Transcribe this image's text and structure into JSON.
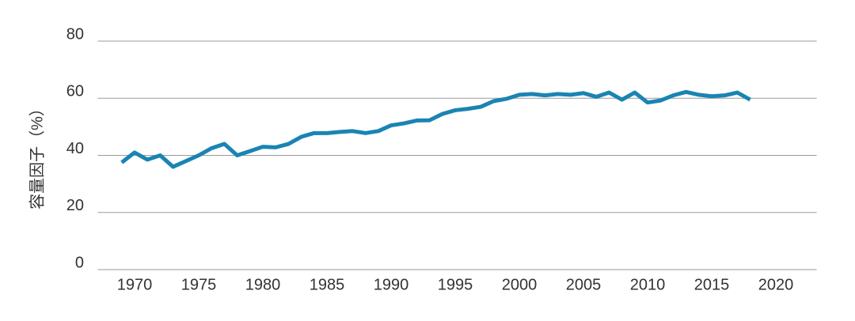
{
  "chart_data": {
    "type": "line",
    "y_label": "容量因子（%）",
    "x": [
      1969,
      1970,
      1971,
      1972,
      1973,
      1974,
      1975,
      1976,
      1977,
      1978,
      1979,
      1980,
      1981,
      1982,
      1983,
      1984,
      1985,
      1986,
      1987,
      1988,
      1989,
      1990,
      1991,
      1992,
      1993,
      1994,
      1995,
      1996,
      1997,
      1998,
      1999,
      2000,
      2001,
      2002,
      2003,
      2004,
      2005,
      2006,
      2007,
      2008,
      2009,
      2010,
      2011,
      2012,
      2013,
      2014,
      2015,
      2016,
      2017,
      2018
    ],
    "series": [
      {
        "name": "capacity factor",
        "color": "#1a84b3",
        "values": [
          37.5,
          41,
          38.5,
          40,
          36,
          38,
          40,
          42.5,
          44,
          40,
          41.5,
          43,
          42.8,
          44,
          46.5,
          47.8,
          47.8,
          48.2,
          48.5,
          47.8,
          48.5,
          50.5,
          51.2,
          52.2,
          52.3,
          54.5,
          55.8,
          56.3,
          57,
          59,
          59.8,
          61.2,
          61.5,
          61,
          61.5,
          61.2,
          61.8,
          60.5,
          62,
          59.5,
          62,
          58.5,
          59.2,
          61,
          62.2,
          61.2,
          60.7,
          61,
          62,
          59.5
        ]
      }
    ],
    "xlim": [
      1967,
      2023
    ],
    "xticks": [
      1970,
      1975,
      1980,
      1985,
      1990,
      1995,
      2000,
      2005,
      2010,
      2015,
      2020
    ],
    "ylim": [
      0,
      80
    ],
    "yticks": [
      0,
      20,
      40,
      60,
      80
    ],
    "grid": true
  }
}
